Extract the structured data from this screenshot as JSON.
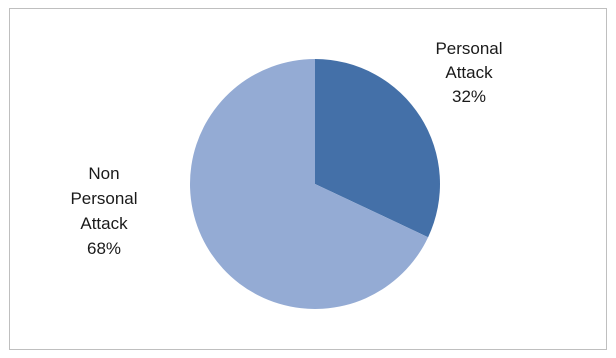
{
  "chart_data": {
    "type": "pie",
    "title": "",
    "slices": [
      {
        "label_lines": [
          "Personal",
          "Attack"
        ],
        "label": "Personal Attack",
        "value": 32,
        "value_label": "32%",
        "color": "#4470a8"
      },
      {
        "label_lines": [
          "Non",
          "Personal",
          "Attack"
        ],
        "label": "Non Personal Attack",
        "value": 68,
        "value_label": "68%",
        "color": "#94abd4"
      }
    ],
    "start_angle_deg": 0,
    "direction": "clockwise",
    "legend": "none"
  }
}
